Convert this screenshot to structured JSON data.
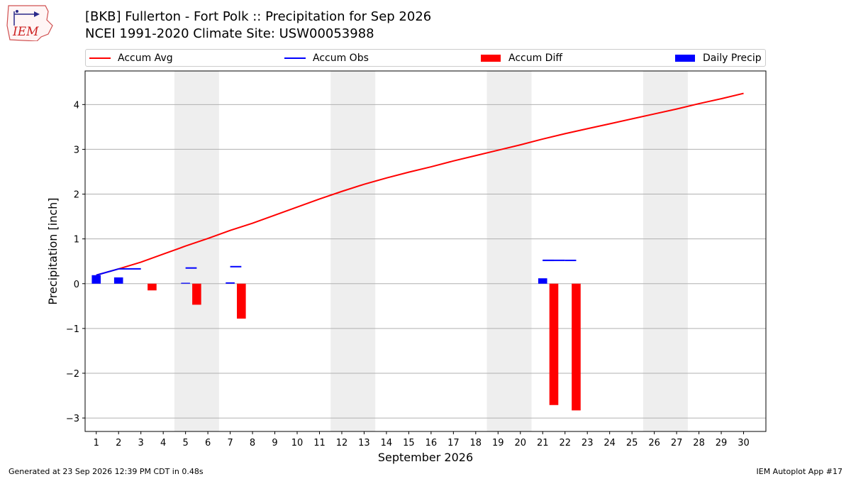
{
  "header": {
    "logo_text": "IEM",
    "title_line1": "[BKB] Fullerton - Fort Polk :: Precipitation for Sep 2026",
    "title_line2": "NCEI 1991-2020 Climate Site: USW00053988"
  },
  "legend": [
    {
      "label": "Accum Avg",
      "kind": "line",
      "color": "#ff0000"
    },
    {
      "label": "Accum Obs",
      "kind": "line",
      "color": "#0000ff"
    },
    {
      "label": "Accum Diff",
      "kind": "patch",
      "color": "#ff0000"
    },
    {
      "label": "Daily Precip",
      "kind": "patch",
      "color": "#0000ff"
    }
  ],
  "footer": {
    "left": "Generated at 23 Sep 2026 12:39 PM CDT in 0.48s",
    "right": "IEM Autoplot App #17"
  },
  "chart_data": {
    "type": "bar",
    "xlabel": "September 2026",
    "ylabel": "Precipitation [inch]",
    "xlim": [
      0.5,
      31.0
    ],
    "ylim": [
      -3.3,
      4.75
    ],
    "x_ticks": [
      1,
      2,
      3,
      4,
      5,
      6,
      7,
      8,
      9,
      10,
      11,
      12,
      13,
      14,
      15,
      16,
      17,
      18,
      19,
      20,
      21,
      22,
      23,
      24,
      25,
      26,
      27,
      28,
      29,
      30
    ],
    "y_ticks": [
      -3,
      -2,
      -1,
      0,
      1,
      2,
      3,
      4
    ],
    "grid": "y",
    "legend_position": "top",
    "weekend_shading": [
      [
        4.5,
        6.5
      ],
      [
        11.5,
        13.5
      ],
      [
        18.5,
        20.5
      ],
      [
        25.5,
        27.5
      ]
    ],
    "series": [
      {
        "name": "Accum Avg",
        "kind": "line",
        "color": "#ff0000",
        "x": [
          1,
          2,
          3,
          4,
          5,
          6,
          7,
          8,
          9,
          10,
          11,
          12,
          13,
          14,
          15,
          16,
          17,
          18,
          19,
          20,
          21,
          22,
          23,
          24,
          25,
          26,
          27,
          28,
          29,
          30
        ],
        "values": [
          0.19,
          0.33,
          0.48,
          0.66,
          0.84,
          1.01,
          1.19,
          1.35,
          1.53,
          1.71,
          1.89,
          2.06,
          2.22,
          2.36,
          2.49,
          2.61,
          2.74,
          2.86,
          2.98,
          3.1,
          3.23,
          3.35,
          3.46,
          3.57,
          3.68,
          3.79,
          3.9,
          4.02,
          4.13,
          4.25
        ]
      },
      {
        "name": "Accum Obs",
        "kind": "step",
        "color": "#0000ff",
        "x": [
          1,
          2,
          3,
          5,
          7,
          21,
          22
        ],
        "values": [
          0.19,
          0.33,
          0.33,
          0.35,
          0.38,
          0.52,
          0.52
        ]
      },
      {
        "name": "Accum Diff",
        "kind": "bar",
        "color": "#ff0000",
        "x": [
          1,
          2,
          3,
          5,
          7,
          21,
          22
        ],
        "values": [
          0.0,
          0.0,
          -0.15,
          -0.47,
          -0.78,
          -2.71,
          -2.83
        ]
      },
      {
        "name": "Daily Precip",
        "kind": "bar",
        "color": "#0000ff",
        "x": [
          1,
          2,
          5,
          7,
          21
        ],
        "values": [
          0.19,
          0.14,
          0.02,
          0.03,
          0.12
        ]
      }
    ]
  }
}
